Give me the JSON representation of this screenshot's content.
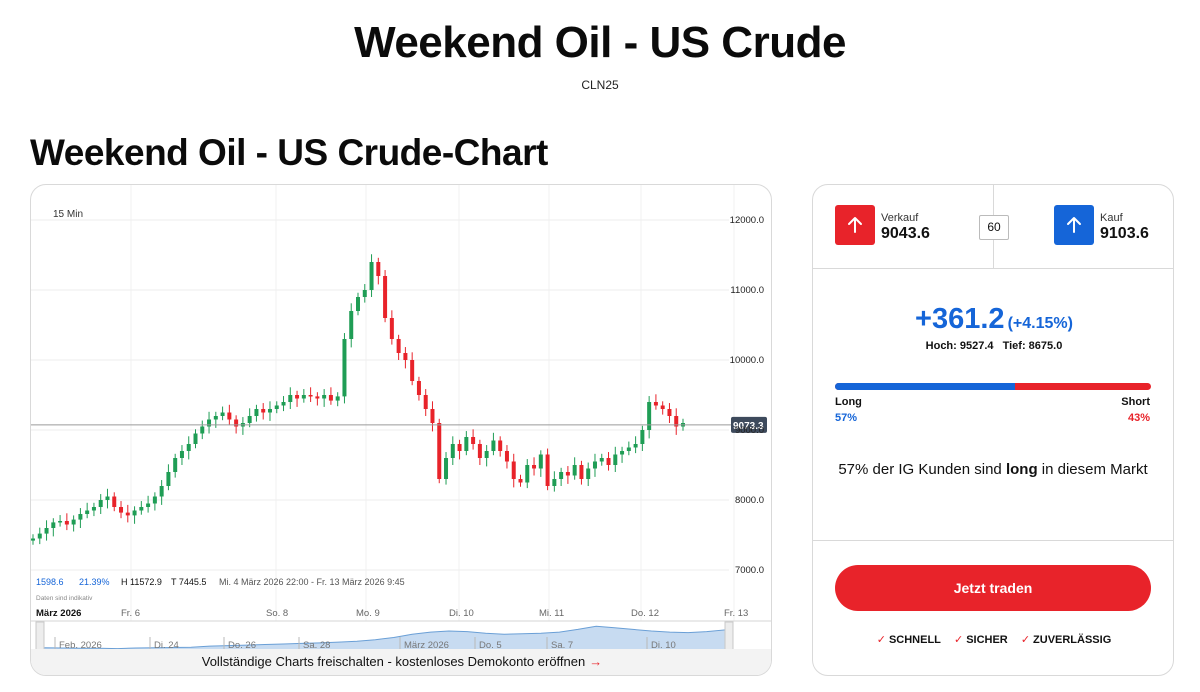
{
  "header": {
    "title": "Weekend Oil - US Crude",
    "code": "CLN25",
    "chart_heading": "Weekend Oil - US Crude-Chart"
  },
  "chart": {
    "interval": "15 Min",
    "stats": {
      "change": "1598.6",
      "change_pct": "21.39%",
      "high": "H 11572.9",
      "low": "T 7445.5",
      "range": "Mi. 4 März 2026 22:00 - Fr. 13 März 2026 9:45"
    },
    "indicative_note": "Daten sind indikativ",
    "current_price_label": "9073.3",
    "cta_text": "Vollständige Charts freischalten - kostenloses Demokonto eröffnen",
    "cta_arrow": "→",
    "navigator_labels": [
      "Feb. 2026",
      "Di. 24",
      "Do. 26",
      "Sa. 28",
      "März 2026",
      "Do. 5",
      "Sa. 7",
      "Di. 10"
    ]
  },
  "chart_data": {
    "type": "candlestick",
    "y_ticks": [
      "12000.0",
      "11000.0",
      "10000.0",
      "9000.0",
      "8000.0",
      "7000.0"
    ],
    "ylim": [
      6900,
      12300
    ],
    "x_ticks": [
      "März 2026",
      "Fr. 6",
      "So. 8",
      "Mo. 9",
      "Di. 10",
      "Mi. 11",
      "Do. 12",
      "Fr. 13"
    ],
    "current_price": 9073.3,
    "series": [
      {
        "values": [
          7450,
          7520,
          7600,
          7680,
          7700,
          7650,
          7720,
          7800,
          7850,
          7900,
          8000,
          8050,
          7900,
          7820,
          7780,
          7850,
          7900,
          7950,
          8050,
          8200,
          8400,
          8600,
          8700,
          8800,
          8950,
          9050,
          9150,
          9200,
          9250,
          9150,
          9050,
          9100,
          9200,
          9300,
          9250,
          9300,
          9350,
          9400,
          9500,
          9450,
          9500,
          9480,
          9450,
          9500,
          9420,
          9480,
          10300,
          10700,
          10900,
          11000,
          11400,
          11200,
          10600,
          10300,
          10100,
          10000,
          9700,
          9500,
          9300,
          9100,
          8300,
          8600,
          8800,
          8700,
          8900,
          8800,
          8600,
          8700,
          8850,
          8700,
          8550,
          8300,
          8250,
          8500,
          8450,
          8650,
          8200,
          8300,
          8400,
          8350,
          8500,
          8300,
          8450,
          8550,
          8600,
          8500,
          8650,
          8700,
          8750,
          8800,
          9000,
          9400,
          9350,
          9300,
          9200,
          9050,
          9100
        ]
      }
    ],
    "navigator_values": [
      0.12,
      0.11,
      0.1,
      0.1,
      0.09,
      0.11,
      0.12,
      0.13,
      0.14,
      0.18,
      0.2,
      0.22,
      0.24,
      0.26,
      0.28,
      0.3,
      0.33,
      0.36,
      0.42,
      0.5,
      0.62,
      0.7,
      0.74,
      0.72,
      0.66,
      0.62,
      0.64,
      0.66,
      0.7,
      0.8,
      0.92,
      0.86,
      0.8,
      0.74,
      0.7,
      0.68,
      0.72,
      0.78
    ]
  },
  "trade": {
    "sell_label": "Verkauf",
    "sell_price": "9043.6",
    "buy_label": "Kauf",
    "buy_price": "9103.6",
    "spread": "60",
    "change_abs": "+361.2",
    "change_pct": "(+4.15%)",
    "high": "Hoch: 9527.4",
    "low": "Tief: 8675.0",
    "long_label": "Long",
    "short_label": "Short",
    "long_pct": "57%",
    "short_pct": "43%",
    "long_fraction": 0.57,
    "sentiment_pre": "57% der IG Kunden sind",
    "sentiment_bold": "long",
    "sentiment_post": "in diesem Markt",
    "trade_button": "Jetzt traden",
    "features": [
      "SCHNELL",
      "SICHER",
      "ZUVERLÄSSIG"
    ]
  },
  "colors": {
    "up": "#1f9d55",
    "down": "#e8232a",
    "blue": "#1565d8",
    "red": "#e8232a",
    "price_tag": "#3d4a5c"
  }
}
